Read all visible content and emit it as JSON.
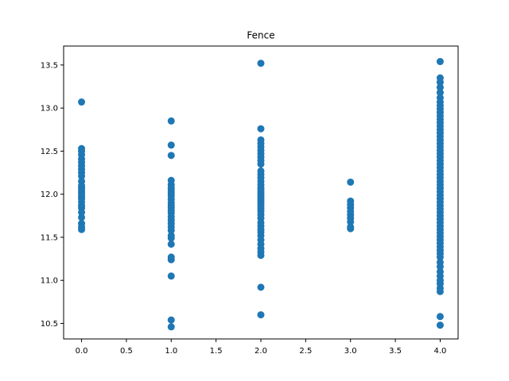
{
  "chart_data": {
    "type": "scatter",
    "title": "Fence",
    "xlabel": "",
    "ylabel": "",
    "xlim": [
      -0.2,
      4.2
    ],
    "ylim": [
      10.32,
      13.72
    ],
    "xticks": [
      0.0,
      0.5,
      1.0,
      1.5,
      2.0,
      2.5,
      3.0,
      3.5,
      4.0
    ],
    "xtick_labels": [
      "0.0",
      "0.5",
      "1.0",
      "1.5",
      "2.0",
      "2.5",
      "3.0",
      "3.5",
      "4.0"
    ],
    "yticks": [
      10.5,
      11.0,
      11.5,
      12.0,
      12.5,
      13.0,
      13.5
    ],
    "ytick_labels": [
      "10.5",
      "11.0",
      "11.5",
      "12.0",
      "12.5",
      "13.0",
      "13.5"
    ],
    "grid": false,
    "marker_color": "#1f77b4",
    "series": [
      {
        "x": 0,
        "y": [
          13.07,
          12.53,
          12.5,
          12.46,
          12.41,
          12.37,
          12.33,
          12.29,
          12.25,
          12.21,
          12.15,
          12.1,
          12.07,
          12.04,
          12.01,
          11.98,
          11.95,
          11.91,
          11.87,
          11.84,
          11.79,
          11.73,
          11.66,
          11.62,
          11.59
        ]
      },
      {
        "x": 1,
        "y": [
          12.85,
          12.57,
          12.45,
          12.16,
          12.11,
          12.07,
          12.04,
          12.01,
          11.98,
          11.94,
          11.9,
          11.87,
          11.84,
          11.81,
          11.78,
          11.74,
          11.7,
          11.66,
          11.62,
          11.58,
          11.52,
          11.49,
          11.42,
          11.27,
          11.24,
          11.05,
          10.54,
          10.46
        ]
      },
      {
        "x": 2,
        "y": [
          13.52,
          12.76,
          12.63,
          12.59,
          12.55,
          12.51,
          12.47,
          12.43,
          12.39,
          12.35,
          12.27,
          12.23,
          12.19,
          12.15,
          12.11,
          12.07,
          12.04,
          12.01,
          11.98,
          11.95,
          11.92,
          11.89,
          11.86,
          11.83,
          11.8,
          11.76,
          11.72,
          11.67,
          11.63,
          11.59,
          11.56,
          11.52,
          11.47,
          11.42,
          11.37,
          11.33,
          11.29,
          10.92,
          10.6
        ]
      },
      {
        "x": 3,
        "y": [
          12.14,
          11.92,
          11.88,
          11.84,
          11.8,
          11.76,
          11.72,
          11.68,
          11.62,
          11.6
        ]
      },
      {
        "x": 4,
        "y": [
          13.54,
          13.35,
          13.3,
          13.24,
          13.18,
          13.12,
          13.07,
          13.03,
          12.99,
          12.95,
          12.91,
          12.87,
          12.83,
          12.79,
          12.75,
          12.71,
          12.67,
          12.63,
          12.59,
          12.55,
          12.51,
          12.47,
          12.43,
          12.39,
          12.35,
          12.31,
          12.27,
          12.23,
          12.19,
          12.15,
          12.11,
          12.07,
          12.03,
          11.99,
          11.95,
          11.91,
          11.87,
          11.83,
          11.79,
          11.75,
          11.71,
          11.67,
          11.63,
          11.59,
          11.55,
          11.51,
          11.47,
          11.43,
          11.39,
          11.35,
          11.31,
          11.27,
          11.21,
          11.16,
          11.1,
          11.05,
          11.0,
          10.96,
          10.91,
          10.87,
          10.58,
          10.48
        ]
      }
    ]
  }
}
